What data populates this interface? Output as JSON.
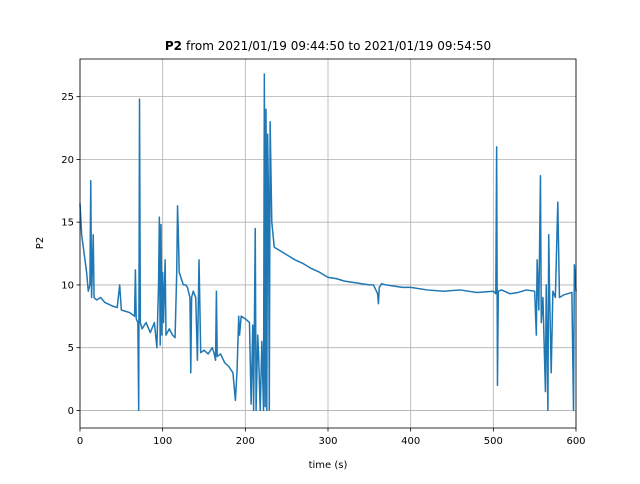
{
  "chart_data": {
    "type": "line",
    "title": {
      "variable": "P2",
      "range": "from 2021/01/19 09:44:50 to 2021/01/19 09:54:50"
    },
    "x_label": "time (s)",
    "y_label": "P2",
    "x": [
      0,
      2,
      5,
      8,
      10,
      12,
      13,
      14,
      16,
      17,
      20,
      25,
      30,
      40,
      45,
      48,
      50,
      60,
      66,
      67,
      68,
      70,
      71,
      72,
      73,
      75,
      80,
      85,
      90,
      93,
      95,
      96,
      97,
      98,
      99,
      100,
      101,
      103,
      104,
      108,
      112,
      115,
      117,
      118,
      119,
      120,
      125,
      128,
      130,
      133,
      134,
      135,
      137,
      140,
      142,
      144,
      146,
      150,
      155,
      160,
      162,
      164,
      165,
      166,
      170,
      175,
      180,
      185,
      188,
      190,
      192,
      193,
      195,
      200,
      205,
      207,
      209,
      210,
      212,
      213,
      215,
      216,
      218,
      220,
      222,
      223,
      224,
      225,
      226,
      227,
      228,
      229,
      230,
      232,
      235,
      240,
      250,
      260,
      270,
      280,
      290,
      300,
      310,
      320,
      330,
      340,
      350,
      355,
      360,
      361,
      362,
      365,
      370,
      380,
      390,
      400,
      420,
      440,
      460,
      480,
      500,
      503,
      504,
      505,
      506,
      510,
      520,
      530,
      540,
      550,
      552,
      553,
      555,
      557,
      558,
      560,
      563,
      564,
      566,
      567,
      568,
      570,
      572,
      575,
      578,
      580,
      585,
      590,
      595,
      597,
      598,
      600
    ],
    "series": [
      {
        "color": "#1f77b4",
        "values": [
          16.5,
          14,
          12.5,
          11,
          9.5,
          10,
          18.3,
          9,
          14,
          9,
          8.8,
          9,
          8.6,
          8.3,
          8.2,
          10,
          8,
          7.8,
          7.5,
          11.2,
          7.3,
          7,
          0,
          24.8,
          7,
          6.5,
          7,
          6.2,
          7,
          5,
          10,
          15.4,
          5.2,
          14.8,
          6,
          11,
          7,
          12,
          6,
          6.5,
          6,
          5.8,
          11,
          16.3,
          14,
          11,
          10,
          10,
          9.8,
          9,
          3,
          9,
          9.5,
          9,
          4,
          12,
          4.6,
          4.8,
          4.5,
          5,
          4.6,
          4,
          9.5,
          4.3,
          4.5,
          3.8,
          3.5,
          3,
          0.8,
          3.2,
          7.5,
          6,
          7.5,
          7.3,
          7,
          0.5,
          6.8,
          0,
          14.5,
          0,
          6,
          4.5,
          0,
          5.5,
          0,
          26.8,
          0.3,
          24,
          0,
          22,
          17,
          0,
          23,
          15,
          13,
          12.8,
          12.4,
          12,
          11.7,
          11.3,
          11,
          10.6,
          10.5,
          10.3,
          10.2,
          10.1,
          10,
          10,
          9.3,
          8.5,
          9.8,
          10.1,
          10,
          9.9,
          9.8,
          9.8,
          9.6,
          9.5,
          9.6,
          9.4,
          9.5,
          9.3,
          21,
          2,
          9.5,
          9.6,
          9.3,
          9.4,
          9.6,
          9.5,
          6,
          12,
          8,
          18.7,
          7,
          9,
          1.5,
          10,
          0,
          14,
          9.5,
          3,
          9.5,
          9,
          16.6,
          9,
          9.2,
          9.3,
          9.4,
          0,
          11.6,
          9.5
        ]
      }
    ],
    "xlim": [
      0,
      600
    ],
    "ylim": [
      -1.4,
      28.0
    ],
    "xticks": [
      0,
      100,
      200,
      300,
      400,
      500,
      600
    ],
    "yticks": [
      0,
      5,
      10,
      15,
      20,
      25
    ],
    "grid": true
  }
}
